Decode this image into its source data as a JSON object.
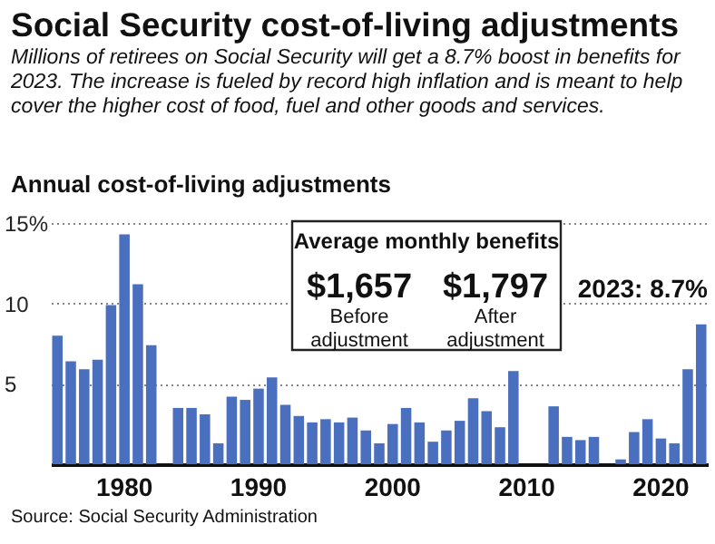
{
  "chart_data": {
    "type": "bar",
    "title": "Social Security cost-of-living adjustments",
    "subtitle": "Millions of retirees on Social Security will get a 8.7% boost in benefits for 2023. The increase is fueled by record high inflation and is meant to help cover the higher cost of food, fuel and other goods and services.",
    "categories": [
      null,
      null,
      null,
      null,
      null,
      "1980",
      null,
      null,
      null,
      null,
      null,
      null,
      null,
      null,
      null,
      "1990",
      null,
      null,
      null,
      null,
      null,
      null,
      null,
      null,
      null,
      "2000",
      null,
      null,
      null,
      null,
      null,
      null,
      null,
      null,
      null,
      "2010",
      null,
      null,
      null,
      null,
      null,
      null,
      null,
      null,
      null,
      "2020",
      null,
      null,
      null
    ],
    "values": [
      8.0,
      6.4,
      5.9,
      6.5,
      9.9,
      14.3,
      11.2,
      7.4,
      0,
      3.5,
      3.5,
      3.1,
      1.3,
      4.2,
      4.0,
      4.7,
      5.4,
      3.7,
      3.0,
      2.6,
      2.8,
      2.6,
      2.9,
      2.1,
      1.3,
      2.5,
      3.5,
      2.6,
      1.4,
      2.1,
      2.7,
      4.1,
      3.3,
      2.3,
      5.8,
      0,
      0,
      3.6,
      1.7,
      1.5,
      1.7,
      0,
      0.3,
      2.0,
      2.8,
      1.6,
      1.3,
      5.9,
      8.7
    ],
    "color": "#4a6fbf",
    "ylim": [
      0,
      15
    ],
    "yticks": [
      5,
      10,
      {
        "value": 15,
        "label": "15%"
      }
    ],
    "grid": "y",
    "annotations": [
      "Annual cost-of-living adjustments",
      "Average monthly benefits",
      "$1,657",
      "Before adjustment",
      "$1,797",
      "After adjustment",
      "2023: 8.7%",
      "Source: Social Security Administration"
    ]
  }
}
